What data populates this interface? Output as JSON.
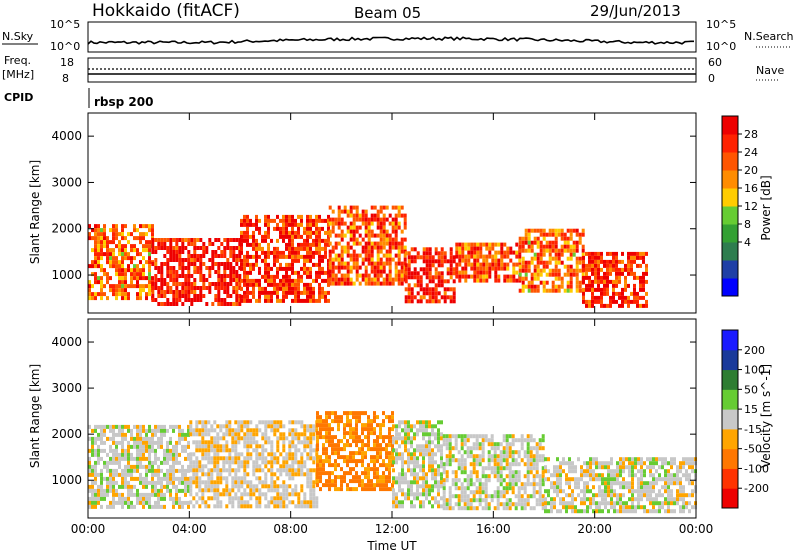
{
  "header": {
    "station": "Hokkaido (fitACF)",
    "beam": "Beam 05",
    "date": "29/Jun/2013"
  },
  "strip": {
    "nsky_label": "N.Sky",
    "nsky_ticks": [
      "10^5",
      "10^0"
    ],
    "nsearch_label": "N.Search",
    "nsearch_ticks": [
      "10^5",
      "10^0"
    ],
    "freq_label": "Freq.",
    "freq_unit": "[MHz]",
    "freq_ticks": [
      "18",
      "8"
    ],
    "nave_label": "Nave",
    "nave_ticks": [
      "60",
      "0"
    ],
    "cpid_label": "CPID",
    "cpid_value": "rbsp 200"
  },
  "colors": {
    "power": [
      "#0000ff",
      "#1f3fa6",
      "#2e7d4f",
      "#33a033",
      "#66cc33",
      "#ffcc00",
      "#ff8c00",
      "#ff5500",
      "#ff2200",
      "#ee0000"
    ],
    "velocity": [
      "#1a1aff",
      "#1a3a9a",
      "#2e7d32",
      "#66cc33",
      "#c8c8c8",
      "#ffa500",
      "#ff7700",
      "#ff3300",
      "#ee0000"
    ]
  },
  "chart_data": [
    {
      "type": "heatmap",
      "title": "Power",
      "ylabel": "Slant Range [km]",
      "xlabel": "",
      "x_ticks": [
        "00:00",
        "04:00",
        "08:00",
        "12:00",
        "16:00",
        "20:00",
        "00:00"
      ],
      "xlim": [
        0,
        24
      ],
      "y_ticks": [
        1000,
        2000,
        3000,
        4000
      ],
      "ylim": [
        180,
        4500
      ],
      "colorbar_label": "Power [dB]",
      "colorbar_ticks": [
        "28",
        "24",
        "20",
        "16",
        "12",
        "8",
        "4"
      ],
      "bands": [
        {
          "x": [
            0.0,
            2.5
          ],
          "y": [
            500,
            2100
          ],
          "power": 20
        },
        {
          "x": [
            2.5,
            6.0
          ],
          "y": [
            400,
            1800
          ],
          "power": 26
        },
        {
          "x": [
            6.0,
            9.5
          ],
          "y": [
            400,
            2300
          ],
          "power": 24
        },
        {
          "x": [
            9.5,
            12.5
          ],
          "y": [
            800,
            2500
          ],
          "power": 22
        },
        {
          "x": [
            12.5,
            14.5
          ],
          "y": [
            400,
            1600
          ],
          "power": 26
        },
        {
          "x": [
            14.5,
            17.0
          ],
          "y": [
            900,
            1700
          ],
          "power": 22
        },
        {
          "x": [
            17.0,
            19.5
          ],
          "y": [
            700,
            2000
          ],
          "power": 20
        },
        {
          "x": [
            19.5,
            22.0
          ],
          "y": [
            300,
            1500
          ],
          "power": 24
        }
      ]
    },
    {
      "type": "heatmap",
      "title": "Velocity",
      "ylabel": "Slant Range [km]",
      "xlabel": "Time UT",
      "x_ticks": [
        "00:00",
        "04:00",
        "08:00",
        "12:00",
        "16:00",
        "20:00",
        "00:00"
      ],
      "xlim": [
        0,
        24
      ],
      "y_ticks": [
        1000,
        2000,
        3000,
        4000
      ],
      "ylim": [
        180,
        4500
      ],
      "colorbar_label": "Velocity [m s^-1]",
      "colorbar_ticks": [
        "200",
        "100",
        "50",
        "15",
        "-15",
        "-50",
        "-100",
        "-200"
      ],
      "bands": [
        {
          "x": [
            0.0,
            4.0
          ],
          "y": [
            400,
            2200
          ],
          "velocity": 0
        },
        {
          "x": [
            4.0,
            9.0
          ],
          "y": [
            400,
            2300
          ],
          "velocity": -10
        },
        {
          "x": [
            9.0,
            12.0
          ],
          "y": [
            800,
            2500
          ],
          "velocity": -60
        },
        {
          "x": [
            12.0,
            14.0
          ],
          "y": [
            400,
            2300
          ],
          "velocity": 0
        },
        {
          "x": [
            14.0,
            18.0
          ],
          "y": [
            400,
            2000
          ],
          "velocity": 0
        },
        {
          "x": [
            18.0,
            24.0
          ],
          "y": [
            300,
            1500
          ],
          "velocity": 0
        }
      ]
    }
  ]
}
